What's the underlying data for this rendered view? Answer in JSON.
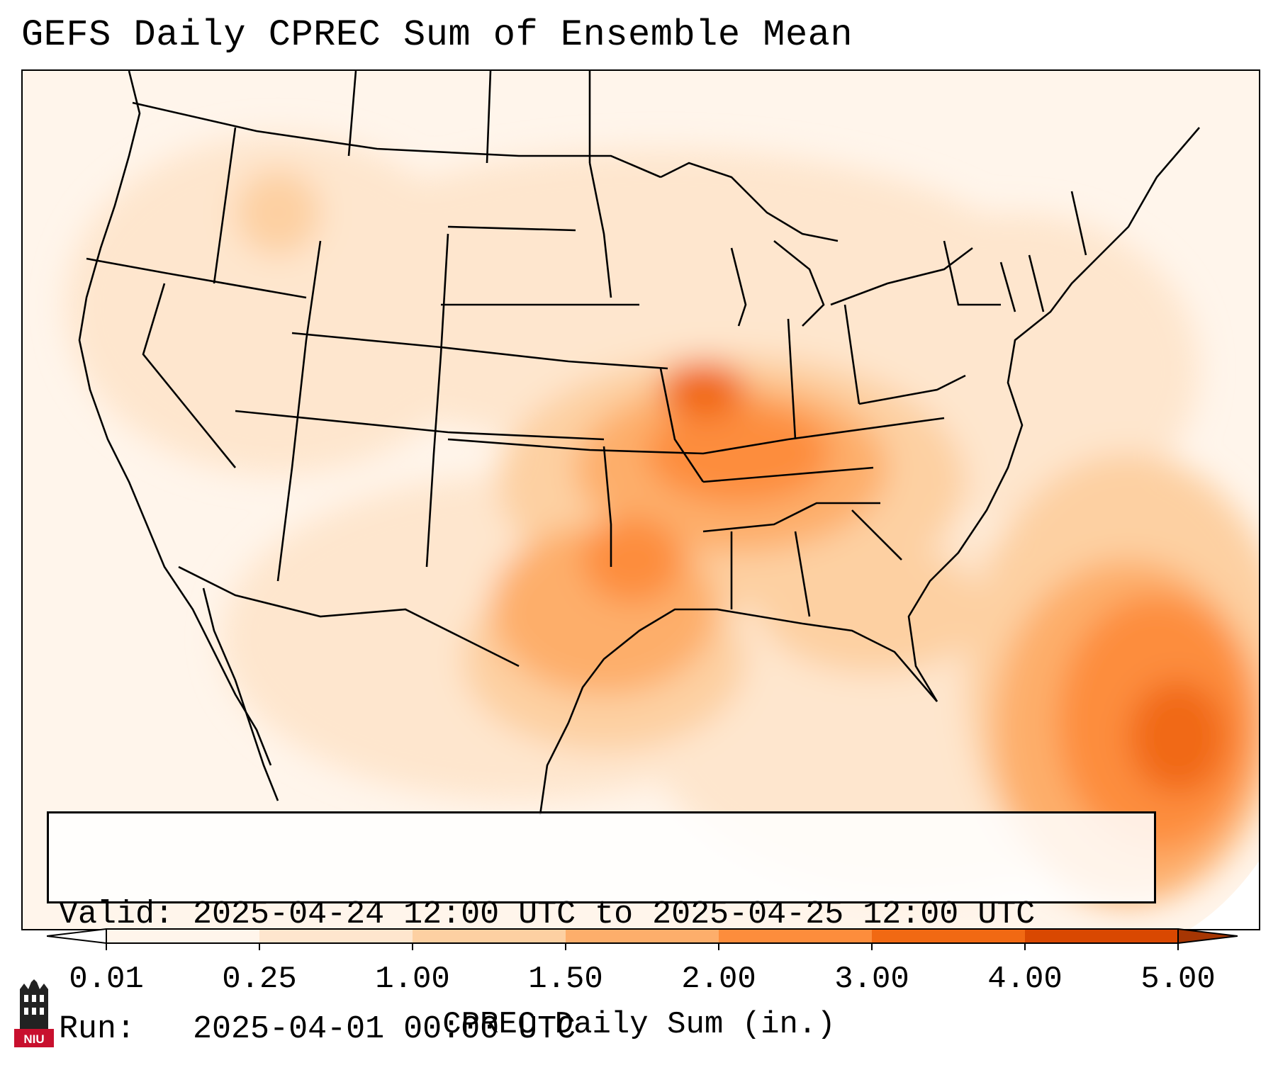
{
  "title": "GEFS Daily CPREC Sum of Ensemble Mean",
  "info": {
    "valid_label": "Valid:",
    "valid_value": "2025-04-24 12:00 UTC to 2025-04-25 12:00 UTC",
    "run_label": "Run:",
    "run_value": "2025-04-01 00:00 UTC"
  },
  "colorbar": {
    "ticks": [
      "0.01",
      "0.25",
      "1.00",
      "1.50",
      "2.00",
      "3.00",
      "4.00",
      "5.00"
    ],
    "colors": [
      "#fff5eb",
      "#fee6ce",
      "#fdd0a2",
      "#fdae6b",
      "#fd8d3c",
      "#f16913",
      "#d94801"
    ],
    "under_color": "#ffffff",
    "over_color": "#a63603",
    "label": "CPREC Daily Sum (in.)"
  },
  "logo": {
    "text": "NIU",
    "color": "#c8102e"
  }
}
